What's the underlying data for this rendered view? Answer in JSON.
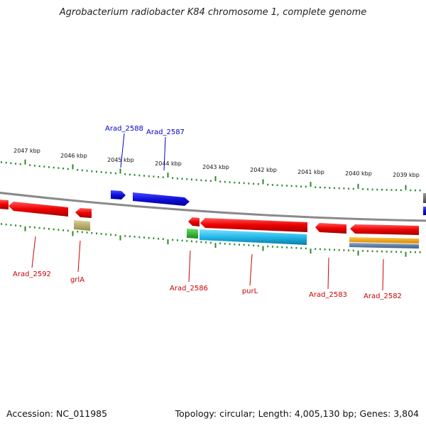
{
  "title": "Agrobacterium radiobacter K84 chromosome 1, complete genome",
  "footer": {
    "accession": "Accession: NC_011985",
    "topology": "Topology: circular; Length: 4,005,130 bp; Genes: 3,804"
  },
  "ticks": [
    "2047 kbp",
    "2046 kbp",
    "2045 kbp",
    "2044 kbp",
    "2043 kbp",
    "2042 kbp",
    "2041 kbp",
    "2040 kbp",
    "2039 kbp"
  ],
  "colors": {
    "backbone": "#8a8a8a",
    "forward_strand": "#1010e0",
    "reverse_strand": "#ee0000",
    "rna": "#b4ad6a",
    "cds_cyan": "#22b8e8",
    "orange": "#f0a000",
    "steel": "#5a7ea8",
    "green": "#33bb33",
    "tick": "#2a8a2a",
    "label_forward": "#0000cc",
    "label_reverse": "#cc0000"
  },
  "forward_labels": [
    {
      "name": "Arad_2588"
    },
    {
      "name": "Arad_2587"
    }
  ],
  "reverse_labels": [
    {
      "name": "Arad_2592"
    },
    {
      "name": "grlA"
    },
    {
      "name": "Arad_2586"
    },
    {
      "name": "purL"
    },
    {
      "name": "Arad_2583"
    },
    {
      "name": "Arad_2582"
    }
  ]
}
